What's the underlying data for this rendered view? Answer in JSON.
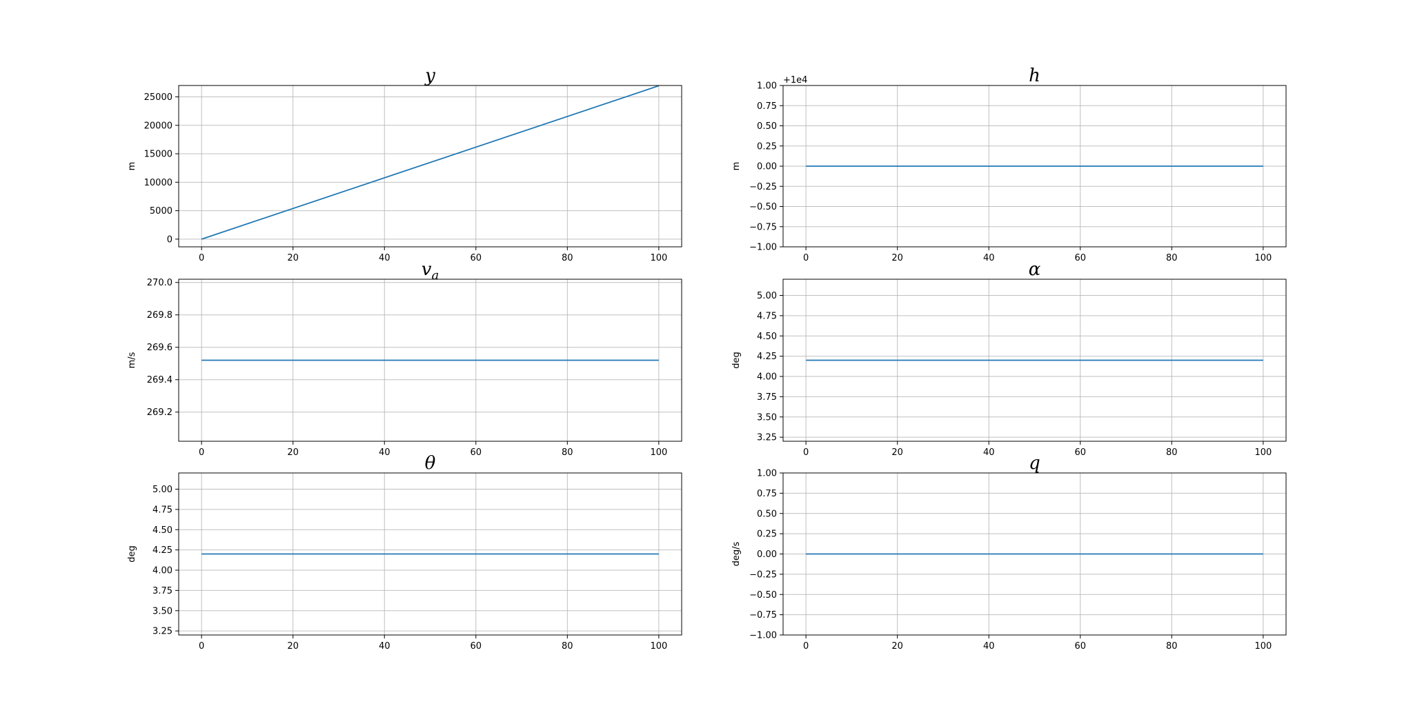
{
  "chart_data": [
    {
      "type": "line",
      "title": "y",
      "title_sub": "",
      "xlabel": "",
      "ylabel": "m",
      "xlim": [
        -5,
        105
      ],
      "ylim": [
        -1350,
        27000
      ],
      "xticks": [
        0,
        20,
        40,
        60,
        80,
        100
      ],
      "yticks": [
        0,
        5000,
        10000,
        15000,
        20000,
        25000
      ],
      "ytick_labels": [
        "0",
        "5000",
        "10000",
        "15000",
        "20000",
        "25000"
      ],
      "offset_text": "",
      "grid": true,
      "series": [
        {
          "x": [
            0,
            100
          ],
          "y": [
            0,
            26950
          ],
          "color": "#1f77b4"
        }
      ]
    },
    {
      "type": "line",
      "title": "h",
      "title_sub": "",
      "xlabel": "",
      "ylabel": "m",
      "xlim": [
        -5,
        105
      ],
      "ylim": [
        -1.0,
        1.0
      ],
      "xticks": [
        0,
        20,
        40,
        60,
        80,
        100
      ],
      "yticks": [
        -1.0,
        -0.75,
        -0.5,
        -0.25,
        0.0,
        0.25,
        0.5,
        0.75,
        1.0
      ],
      "ytick_labels": [
        "−1.00",
        "−0.75",
        "−0.50",
        "−0.25",
        "0.00",
        "0.25",
        "0.50",
        "0.75",
        "1.00"
      ],
      "offset_text": "+1e4",
      "grid": true,
      "series": [
        {
          "x": [
            0,
            100
          ],
          "y": [
            0.0,
            0.0
          ],
          "color": "#1f77b4"
        }
      ]
    },
    {
      "type": "line",
      "title": "v",
      "title_sub": "a",
      "xlabel": "",
      "ylabel": "m/s",
      "xlim": [
        -5,
        105
      ],
      "ylim": [
        269.02,
        270.02
      ],
      "xticks": [
        0,
        20,
        40,
        60,
        80,
        100
      ],
      "yticks": [
        269.2,
        269.4,
        269.6,
        269.8,
        270.0
      ],
      "ytick_labels": [
        "269.2",
        "269.4",
        "269.6",
        "269.8",
        "270.0"
      ],
      "offset_text": "",
      "grid": true,
      "series": [
        {
          "x": [
            0,
            100
          ],
          "y": [
            269.52,
            269.52
          ],
          "color": "#1f77b4"
        }
      ]
    },
    {
      "type": "line",
      "title": "α",
      "title_sub": "",
      "xlabel": "",
      "ylabel": "deg",
      "xlim": [
        -5,
        105
      ],
      "ylim": [
        3.2,
        5.2
      ],
      "xticks": [
        0,
        20,
        40,
        60,
        80,
        100
      ],
      "yticks": [
        3.25,
        3.5,
        3.75,
        4.0,
        4.25,
        4.5,
        4.75,
        5.0
      ],
      "ytick_labels": [
        "3.25",
        "3.50",
        "3.75",
        "4.00",
        "4.25",
        "4.50",
        "4.75",
        "5.00"
      ],
      "offset_text": "",
      "grid": true,
      "series": [
        {
          "x": [
            0,
            100
          ],
          "y": [
            4.2,
            4.2
          ],
          "color": "#1f77b4"
        }
      ]
    },
    {
      "type": "line",
      "title": "θ",
      "title_sub": "",
      "xlabel": "",
      "ylabel": "deg",
      "xlim": [
        -5,
        105
      ],
      "ylim": [
        3.2,
        5.2
      ],
      "xticks": [
        0,
        20,
        40,
        60,
        80,
        100
      ],
      "yticks": [
        3.25,
        3.5,
        3.75,
        4.0,
        4.25,
        4.5,
        4.75,
        5.0
      ],
      "ytick_labels": [
        "3.25",
        "3.50",
        "3.75",
        "4.00",
        "4.25",
        "4.50",
        "4.75",
        "5.00"
      ],
      "offset_text": "",
      "grid": true,
      "series": [
        {
          "x": [
            0,
            100
          ],
          "y": [
            4.2,
            4.2
          ],
          "color": "#1f77b4"
        }
      ]
    },
    {
      "type": "line",
      "title": "q",
      "title_sub": "",
      "xlabel": "",
      "ylabel": "deg/s",
      "xlim": [
        -5,
        105
      ],
      "ylim": [
        -1.0,
        1.0
      ],
      "xticks": [
        0,
        20,
        40,
        60,
        80,
        100
      ],
      "yticks": [
        -1.0,
        -0.75,
        -0.5,
        -0.25,
        0.0,
        0.25,
        0.5,
        0.75,
        1.0
      ],
      "ytick_labels": [
        "−1.00",
        "−0.75",
        "−0.50",
        "−0.25",
        "0.00",
        "0.25",
        "0.50",
        "0.75",
        "1.00"
      ],
      "offset_text": "",
      "grid": true,
      "series": [
        {
          "x": [
            0,
            100
          ],
          "y": [
            0.0,
            0.0
          ],
          "color": "#1f77b4"
        }
      ]
    }
  ]
}
